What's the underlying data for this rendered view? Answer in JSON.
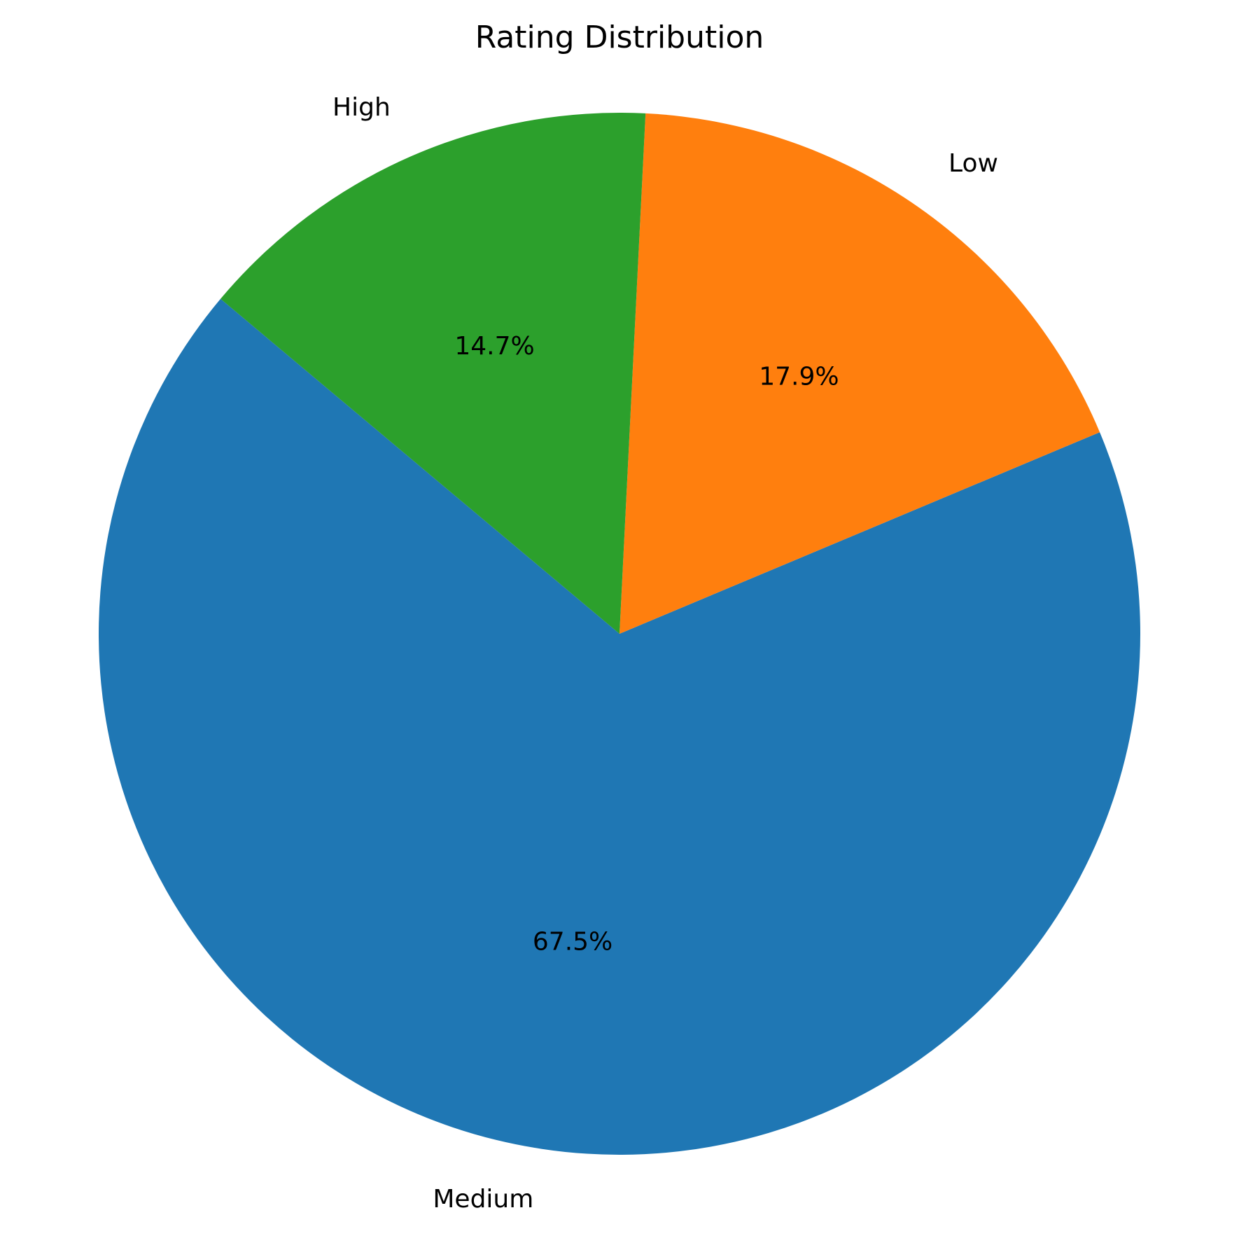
{
  "chart_data": {
    "type": "pie",
    "title": "Rating Distribution",
    "slices": [
      {
        "label": "Medium",
        "value": 67.5,
        "pct_label": "67.5%",
        "color": "#1f77b4"
      },
      {
        "label": "Low",
        "value": 17.9,
        "pct_label": "17.9%",
        "color": "#ff7f0e"
      },
      {
        "label": "High",
        "value": 14.7,
        "pct_label": "14.7%",
        "color": "#2ca02c"
      }
    ],
    "start_angle_deg": 140,
    "direction": "counterclockwise",
    "legend": "none"
  }
}
